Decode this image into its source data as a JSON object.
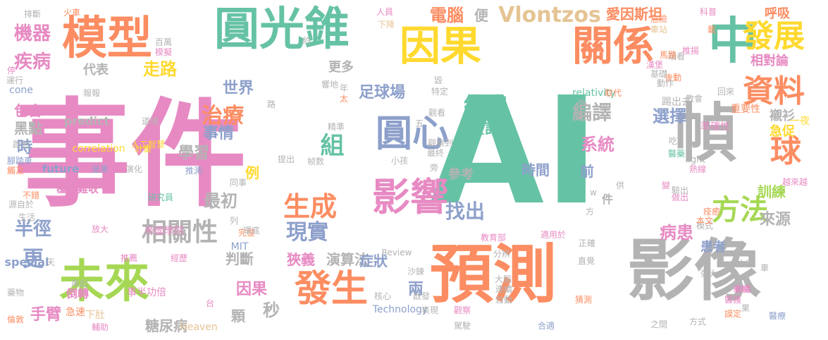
{
  "palette": {
    "pink": "#e78ac3",
    "orange": "#fc8d62",
    "teal": "#66c2a5",
    "blue": "#8da0cb",
    "green": "#a6d854",
    "yellow": "#ffd92f",
    "tan": "#e5c494",
    "gray": "#b3b3b3"
  },
  "words": [
    {
      "text": "事件",
      "color": "pink"
    },
    {
      "text": "AI",
      "color": "teal"
    },
    {
      "text": "預測",
      "color": "orange"
    },
    {
      "text": "影像",
      "color": "gray"
    },
    {
      "text": "圓光錐",
      "color": "teal"
    },
    {
      "text": "模型",
      "color": "orange"
    },
    {
      "text": "因果",
      "color": "yellow"
    },
    {
      "text": "關係",
      "color": "orange"
    },
    {
      "text": "中",
      "color": "teal"
    },
    {
      "text": "未來",
      "color": "green"
    },
    {
      "text": "幀",
      "color": "gray"
    },
    {
      "text": "發生",
      "color": "orange"
    },
    {
      "text": "影響",
      "color": "pink"
    },
    {
      "text": "圓心",
      "color": "blue"
    },
    {
      "text": "發展",
      "color": "yellow"
    },
    {
      "text": "資料",
      "color": "orange"
    },
    {
      "text": "球",
      "color": "orange"
    },
    {
      "text": "方法",
      "color": "green"
    },
    {
      "text": "生成",
      "color": "orange"
    },
    {
      "text": "相關性",
      "color": "gray"
    },
    {
      "text": "現實",
      "color": "blue"
    },
    {
      "text": "Vlontzos",
      "color": "tan"
    },
    {
      "text": "組",
      "color": "teal"
    },
    {
      "text": "給出",
      "color": "teal"
    },
    {
      "text": "找出",
      "color": "blue"
    },
    {
      "text": "編譯",
      "color": "gray"
    },
    {
      "text": "半徑",
      "color": "blue"
    },
    {
      "text": "更",
      "color": "blue"
    },
    {
      "text": "治療",
      "color": "orange"
    },
    {
      "text": "選擇",
      "color": "blue"
    },
    {
      "text": "系統",
      "color": "pink"
    },
    {
      "text": "病患",
      "color": "pink"
    },
    {
      "text": "機器",
      "color": "pink"
    },
    {
      "text": "疾病",
      "color": "pink"
    },
    {
      "text": "電腦",
      "color": "orange"
    },
    {
      "text": "走路",
      "color": "yellow"
    },
    {
      "text": "愛因斯坦",
      "color": "orange"
    },
    {
      "text": "相對論",
      "color": "pink"
    },
    {
      "text": "訓練",
      "color": "green"
    },
    {
      "text": "來源",
      "color": "gray"
    },
    {
      "text": "最初",
      "color": "gray"
    },
    {
      "text": "狹義",
      "color": "pink"
    },
    {
      "text": "演算法",
      "color": "gray"
    },
    {
      "text": "判斷",
      "color": "gray"
    },
    {
      "text": "手臂",
      "color": "pink"
    },
    {
      "text": "因果",
      "color": "pink"
    },
    {
      "text": "事情",
      "color": "blue"
    },
    {
      "text": "學習",
      "color": "gray"
    },
    {
      "text": "資訊",
      "color": "teal"
    },
    {
      "text": "時間",
      "color": "blue"
    },
    {
      "text": "參考",
      "color": "gray"
    },
    {
      "text": "世界",
      "color": "blue"
    },
    {
      "text": "足球場",
      "color": "blue"
    },
    {
      "text": "症狀",
      "color": "blue"
    },
    {
      "text": "糖尿病",
      "color": "gray"
    },
    {
      "text": "秒",
      "color": "gray"
    },
    {
      "text": "兩",
      "color": "blue"
    },
    {
      "text": "顆",
      "color": "gray"
    },
    {
      "text": "包含",
      "color": "pink"
    },
    {
      "text": "黑點",
      "color": "gray"
    },
    {
      "text": "時",
      "color": "blue"
    },
    {
      "text": "例",
      "color": "yellow"
    },
    {
      "text": "前",
      "color": "blue"
    },
    {
      "text": "件",
      "color": "gray"
    },
    {
      "text": "便",
      "color": "gray"
    },
    {
      "text": "更多",
      "color": "gray"
    },
    {
      "text": "代表",
      "color": "gray"
    },
    {
      "text": "患者",
      "color": "blue"
    },
    {
      "text": "襯衫",
      "color": "gray"
    },
    {
      "text": "急促",
      "color": "yellow"
    },
    {
      "text": "呼吸",
      "color": "orange"
    },
    {
      "text": "一夜",
      "color": "yellow"
    },
    {
      "text": "踢出去",
      "color": "gray"
    },
    {
      "text": "重要性",
      "color": "orange"
    },
    {
      "text": "準確性",
      "color": "pink"
    },
    {
      "text": "predict",
      "color": "gray"
    },
    {
      "text": "correlation",
      "color": "yellow"
    },
    {
      "text": "future",
      "color": "blue"
    },
    {
      "text": "relativity",
      "color": "teal"
    },
    {
      "text": "cone",
      "color": "blue"
    },
    {
      "text": "light",
      "color": "gray"
    },
    {
      "text": "MIT",
      "color": "blue"
    },
    {
      "text": "special",
      "color": "blue"
    },
    {
      "text": "Technology",
      "color": "blue"
    },
    {
      "text": "Heaven",
      "color": "tan"
    },
    {
      "text": "Review",
      "color": "gray"
    },
    {
      "text": "覆水難收",
      "color": "pink"
    },
    {
      "text": "人工智慧",
      "color": "yellow"
    },
    {
      "text": "帝國學院",
      "color": "pink"
    },
    {
      "text": "研究員",
      "color": "teal"
    },
    {
      "text": "倒轉",
      "color": "pink"
    },
    {
      "text": "急速",
      "color": "orange"
    },
    {
      "text": "事半功倍",
      "color": "pink"
    },
    {
      "text": "經歷",
      "color": "pink"
    },
    {
      "text": "推薦",
      "color": "pink"
    },
    {
      "text": "放大",
      "color": "pink"
    },
    {
      "text": "完整",
      "color": "orange"
    },
    {
      "text": "下肚",
      "color": "tan"
    },
    {
      "text": "後續",
      "color": "pink"
    },
    {
      "text": "藥物",
      "color": "gray"
    },
    {
      "text": "倫敦",
      "color": "orange"
    },
    {
      "text": "輔助",
      "color": "pink"
    },
    {
      "text": "串起",
      "color": "gray"
    },
    {
      "text": "核心",
      "color": "gray"
    },
    {
      "text": "連續",
      "color": "gray"
    },
    {
      "text": "自動",
      "color": "gray"
    },
    {
      "text": "大腦",
      "color": "gray"
    },
    {
      "text": "觀察",
      "color": "pink"
    },
    {
      "text": "駕駛",
      "color": "gray"
    },
    {
      "text": "合適",
      "color": "blue"
    },
    {
      "text": "之間",
      "color": "gray"
    },
    {
      "text": "方式",
      "color": "gray"
    },
    {
      "text": "醫護",
      "color": "pink"
    },
    {
      "text": "醫療",
      "color": "blue"
    },
    {
      "text": "謨定",
      "color": "orange"
    },
    {
      "text": "車輛",
      "color": "pink"
    },
    {
      "text": "猜測",
      "color": "orange"
    },
    {
      "text": "模式",
      "color": "gray"
    },
    {
      "text": "本文",
      "color": "orange"
    },
    {
      "text": "痊癒",
      "color": "orange"
    },
    {
      "text": "越來越",
      "color": "pink"
    },
    {
      "text": "方案",
      "color": "gray"
    },
    {
      "text": "強大",
      "color": "gray"
    },
    {
      "text": "做出",
      "color": "pink"
    },
    {
      "text": "驗出",
      "color": "gray"
    },
    {
      "text": "適用於",
      "color": "pink"
    },
    {
      "text": "教育部",
      "color": "pink"
    },
    {
      "text": "分辨",
      "color": "gray"
    },
    {
      "text": "直覺",
      "color": "gray"
    },
    {
      "text": "正確",
      "color": "gray"
    },
    {
      "text": "醫藥",
      "color": "teal"
    },
    {
      "text": "熱線",
      "color": "pink"
    },
    {
      "text": "吃",
      "color": "gray"
    },
    {
      "text": "變",
      "color": "pink"
    },
    {
      "text": "供",
      "color": "gray"
    },
    {
      "text": "教會",
      "color": "gray"
    },
    {
      "text": "回來",
      "color": "gray"
    },
    {
      "text": "取代",
      "color": "orange"
    },
    {
      "text": "推揚",
      "color": "pink"
    },
    {
      "text": "端看",
      "color": "gray"
    },
    {
      "text": "載",
      "color": "orange"
    },
    {
      "text": "科普",
      "color": "pink"
    },
    {
      "text": "人員",
      "color": "pink"
    },
    {
      "text": "下降",
      "color": "tan"
    },
    {
      "text": "危險",
      "color": "orange"
    },
    {
      "text": "車站",
      "color": "tan"
    },
    {
      "text": "百萬",
      "color": "gray"
    },
    {
      "text": "模擬",
      "color": "pink"
    },
    {
      "text": "火車",
      "color": "orange"
    },
    {
      "text": "排斷",
      "color": "gray"
    },
    {
      "text": "運行",
      "color": "gray"
    },
    {
      "text": "報報",
      "color": "gray"
    },
    {
      "text": "道理",
      "color": "gray"
    },
    {
      "text": "計畫",
      "color": "yellow"
    },
    {
      "text": "跑到",
      "color": "gray"
    },
    {
      "text": "腳踏車",
      "color": "blue"
    },
    {
      "text": "觸及",
      "color": "orange"
    },
    {
      "text": "是果",
      "color": "blue"
    },
    {
      "text": "演化",
      "color": "gray"
    },
    {
      "text": "推測",
      "color": "blue"
    },
    {
      "text": "不錯",
      "color": "orange"
    },
    {
      "text": "源自於",
      "color": "gray"
    },
    {
      "text": "生活",
      "color": "gray"
    },
    {
      "text": "停",
      "color": "pink"
    },
    {
      "text": "列",
      "color": "gray"
    },
    {
      "text": "同事",
      "color": "gray"
    },
    {
      "text": "提出",
      "color": "gray"
    },
    {
      "text": "帧数",
      "color": "gray"
    },
    {
      "text": "小孩",
      "color": "gray"
    },
    {
      "text": "最終",
      "color": "gray"
    },
    {
      "text": "觀察到",
      "color": "gray"
    },
    {
      "text": "精準",
      "color": "gray"
    },
    {
      "text": "觀看",
      "color": "gray"
    },
    {
      "text": "特定",
      "color": "gray"
    },
    {
      "text": "馬路",
      "color": "orange"
    },
    {
      "text": "漢堡",
      "color": "pink"
    },
    {
      "text": "後動",
      "color": "orange"
    },
    {
      "text": "基礎",
      "color": "gray"
    },
    {
      "text": "動作",
      "color": "gray"
    },
    {
      "text": "毀",
      "color": "gray"
    },
    {
      "text": "約",
      "color": "gray"
    },
    {
      "text": "路",
      "color": "gray"
    },
    {
      "text": "年",
      "color": "gray"
    },
    {
      "text": "太",
      "color": "orange"
    },
    {
      "text": "五",
      "color": "gray"
    },
    {
      "text": "旁",
      "color": "gray"
    },
    {
      "text": "事",
      "color": "gray"
    },
    {
      "text": "w",
      "color": "gray"
    },
    {
      "text": "方",
      "color": "gray"
    },
    {
      "text": "車",
      "color": "gray"
    },
    {
      "text": "果",
      "color": "gray"
    },
    {
      "text": "天",
      "color": "gray"
    },
    {
      "text": "台",
      "color": "pink"
    },
    {
      "text": "表現",
      "color": "gray"
    },
    {
      "text": "啟發",
      "color": "gray"
    },
    {
      "text": "沙鍊",
      "color": "gray"
    },
    {
      "text": "響地",
      "color": "gray"
    },
    {
      "text": "環底",
      "color": "gray"
    },
    {
      "text": "呱呱",
      "color": "gray"
    }
  ]
}
